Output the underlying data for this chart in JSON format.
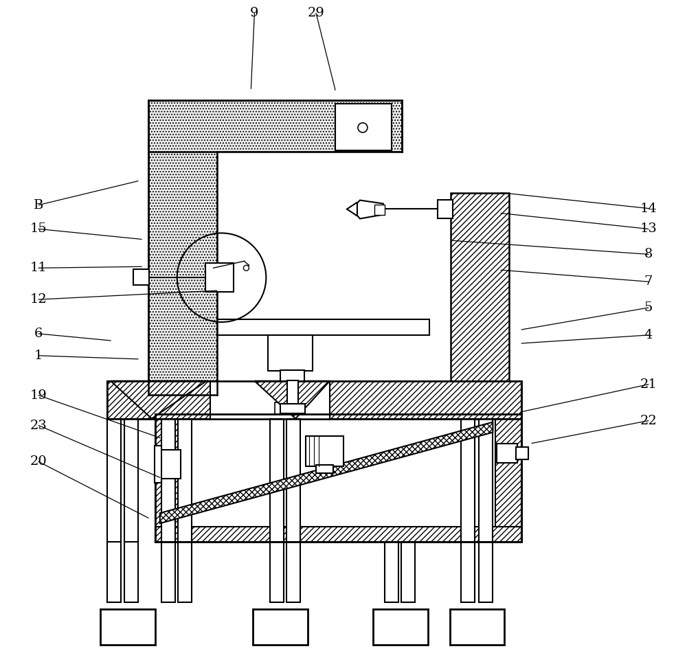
{
  "bg": "#ffffff",
  "fig_w": 10.0,
  "fig_h": 9.48,
  "dpi": 100,
  "anno": [
    [
      "9",
      370,
      930,
      365,
      820
    ],
    [
      "29",
      460,
      930,
      488,
      818
    ],
    [
      "B",
      55,
      650,
      200,
      685
    ],
    [
      "15",
      55,
      615,
      205,
      600
    ],
    [
      "11",
      55,
      558,
      205,
      560
    ],
    [
      "12",
      55,
      512,
      315,
      525
    ],
    [
      "6",
      55,
      462,
      160,
      452
    ],
    [
      "1",
      55,
      430,
      200,
      425
    ],
    [
      "19",
      55,
      372,
      232,
      310
    ],
    [
      "23",
      55,
      328,
      232,
      252
    ],
    [
      "20",
      55,
      275,
      215,
      193
    ],
    [
      "14",
      945,
      645,
      730,
      668
    ],
    [
      "13",
      945,
      615,
      730,
      638
    ],
    [
      "8",
      945,
      578,
      660,
      598
    ],
    [
      "7",
      945,
      538,
      730,
      555
    ],
    [
      "5",
      945,
      500,
      760,
      468
    ],
    [
      "4",
      945,
      460,
      760,
      448
    ],
    [
      "21",
      945,
      388,
      760,
      348
    ],
    [
      "22",
      945,
      335,
      775,
      302
    ]
  ]
}
